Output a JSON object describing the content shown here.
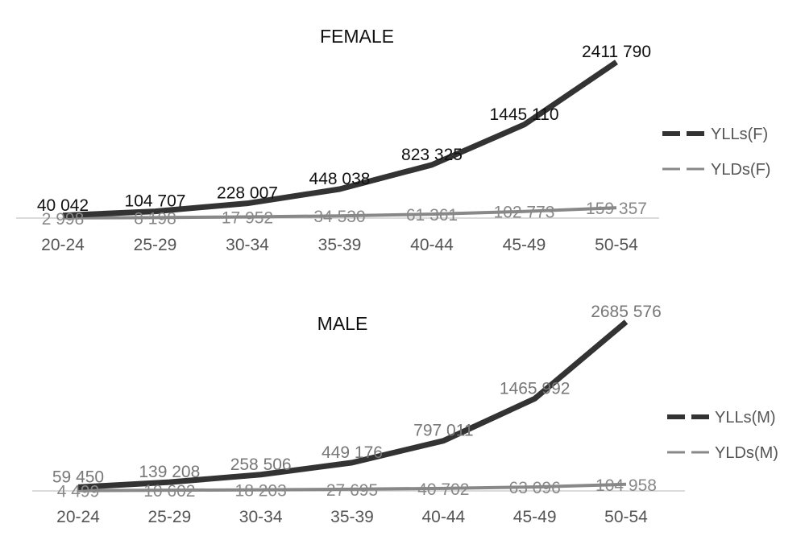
{
  "chart_data": [
    {
      "type": "line",
      "title": "FEMALE",
      "categories": [
        "20-24",
        "25-29",
        "30-34",
        "35-39",
        "40-44",
        "45-49",
        "50-54"
      ],
      "series": [
        {
          "name": "YLLs(F)",
          "values": [
            40042,
            104707,
            228007,
            448038,
            823325,
            1445110,
            2411790
          ],
          "labels": [
            "40 042",
            "104 707",
            "228 007",
            "448 038",
            "823 325",
            "1445 110",
            "2411 790"
          ],
          "color": "#333333"
        },
        {
          "name": "YLDs(F)",
          "values": [
            2998,
            8198,
            17952,
            34530,
            61361,
            102773,
            159357
          ],
          "labels": [
            "2 998",
            "8 198",
            "17 952",
            "34 530",
            "61 361",
            "102 773",
            "159 357"
          ],
          "color": "#888888"
        }
      ],
      "ylim": [
        0,
        2600000
      ],
      "grid": false,
      "legend": "right"
    },
    {
      "type": "line",
      "title": "MALE",
      "categories": [
        "20-24",
        "25-29",
        "30-34",
        "35-39",
        "40-44",
        "45-49",
        "50-54"
      ],
      "series": [
        {
          "name": "YLLs(M)",
          "values": [
            59450,
            139208,
            258506,
            449176,
            797011,
            1465992,
            2685576
          ],
          "labels": [
            "59 450",
            "139 208",
            "258 506",
            "449 176",
            "797 011",
            "1465 992",
            "2685 576"
          ],
          "color": "#333333"
        },
        {
          "name": "YLDs(M)",
          "values": [
            4499,
            10602,
            18203,
            27695,
            40702,
            63096,
            104958
          ],
          "labels": [
            "4 499",
            "10 602",
            "18 203",
            "27 695",
            "40 702",
            "63 096",
            "104 958"
          ],
          "color": "#888888"
        }
      ],
      "ylim": [
        0,
        2800000
      ],
      "grid": false,
      "legend": "right"
    }
  ]
}
